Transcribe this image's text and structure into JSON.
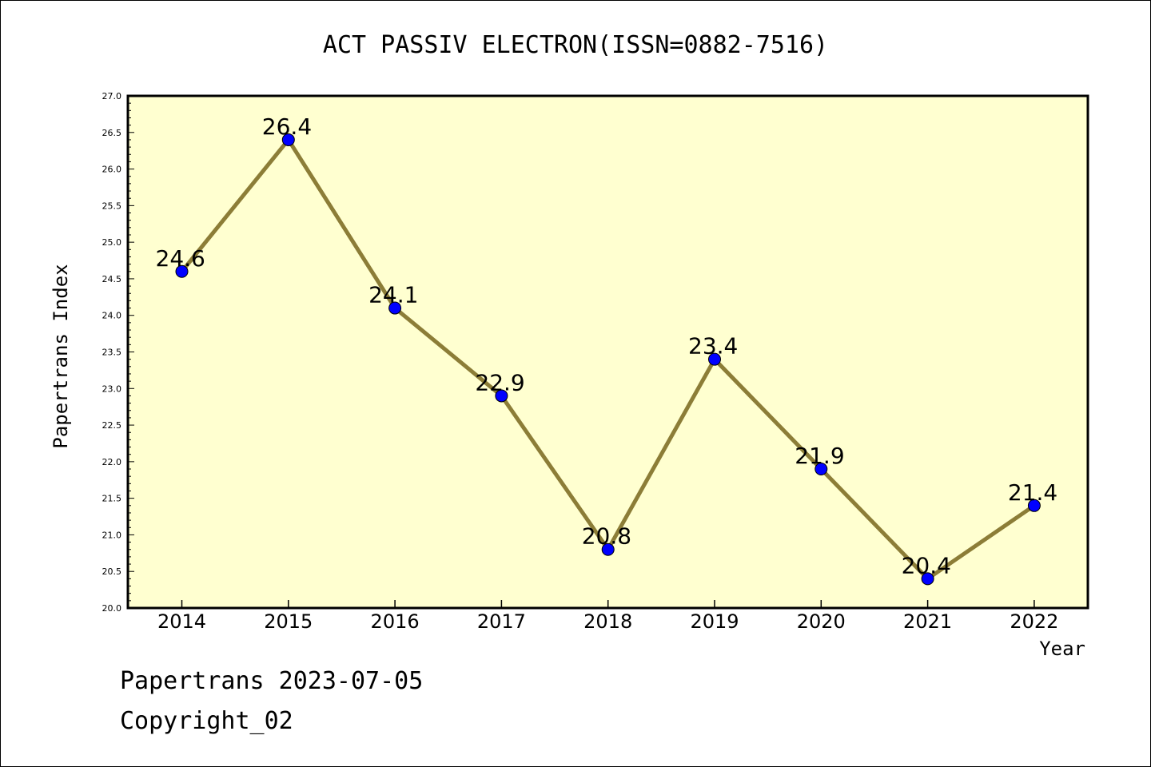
{
  "chart_data": {
    "type": "line",
    "title": "ACT PASSIV ELECTRON(ISSN=0882-7516)",
    "xlabel": "Year",
    "ylabel": "Papertrans Index",
    "categories": [
      "2014",
      "2015",
      "2016",
      "2017",
      "2018",
      "2019",
      "2020",
      "2021",
      "2022"
    ],
    "values": [
      24.6,
      26.4,
      24.1,
      22.9,
      20.8,
      23.4,
      21.9,
      20.4,
      21.4
    ],
    "data_labels": [
      "24.6",
      "26.4",
      "24.1",
      "22.9",
      "20.8",
      "23.4",
      "21.9",
      "20.4",
      "21.4"
    ],
    "ylim": [
      20.0,
      27.0
    ],
    "yticks": [
      "20.0",
      "20.5",
      "21.0",
      "21.5",
      "22.0",
      "22.5",
      "23.0",
      "23.5",
      "24.0",
      "24.5",
      "25.0",
      "25.5",
      "26.0",
      "26.5",
      "27.0"
    ],
    "grid": false,
    "legend": "none",
    "colors": {
      "plot_background": "#ffffd0",
      "line": "#8c7d37",
      "marker": "#0000ff"
    }
  },
  "footer": {
    "date_text": "Papertrans 2023-07-05",
    "copyright_text": "Copyright_02"
  }
}
